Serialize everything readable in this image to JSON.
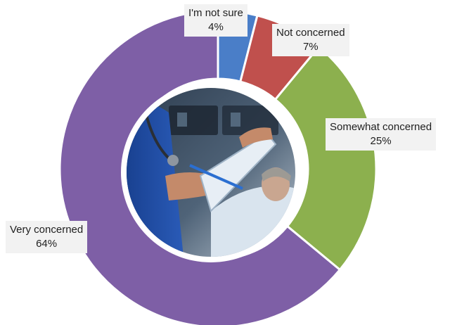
{
  "chart_data": {
    "type": "pie",
    "donut": true,
    "title": "",
    "legend": "none",
    "slices": [
      {
        "label": "I'm not sure",
        "value": 4,
        "value_label": "4%",
        "color": "#4a7ec8"
      },
      {
        "label": "Not concerned",
        "value": 7,
        "value_label": "7%",
        "color": "#c0504d"
      },
      {
        "label": "Somewhat concerned",
        "value": 25,
        "value_label": "25%",
        "color": "#8cb04e"
      },
      {
        "label": "Very concerned",
        "value": 64,
        "value_label": "64%",
        "color": "#7e5fa6"
      }
    ]
  },
  "center_image": {
    "icon": "nurse-with-clipboard-photo"
  }
}
